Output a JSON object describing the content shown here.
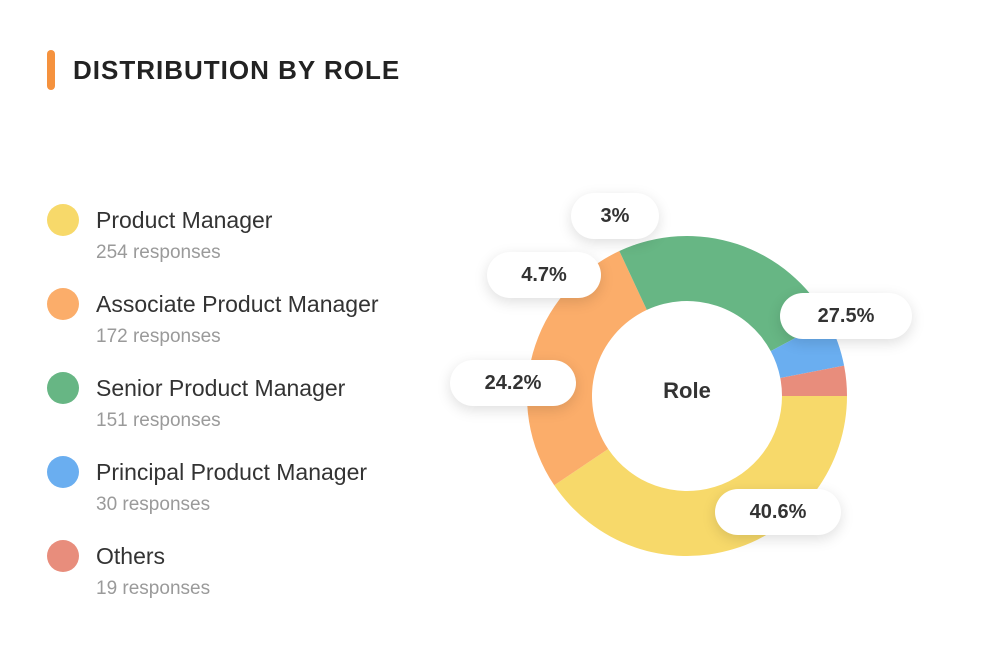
{
  "header": {
    "title": "DISTRIBUTION BY ROLE"
  },
  "legend": [
    {
      "label": "Product Manager",
      "sub": "254 responses",
      "color": "#f7d96a"
    },
    {
      "label": "Associate Product Manager",
      "sub": "172 responses",
      "color": "#fbad6a"
    },
    {
      "label": "Senior Product Manager",
      "sub": "151 responses",
      "color": "#67b684"
    },
    {
      "label": "Principal Product Manager",
      "sub": "30 responses",
      "color": "#6aaef0"
    },
    {
      "label": "Others",
      "sub": "19 responses",
      "color": "#e88d7c"
    }
  ],
  "chart_data": {
    "type": "pie",
    "center_label": "Role",
    "categories": [
      "Product Manager",
      "Associate Product Manager",
      "Senior Product Manager",
      "Principal Product Manager",
      "Others"
    ],
    "values": [
      254,
      172,
      151,
      30,
      19
    ],
    "percent_labels": [
      "40.6%",
      "27.5%",
      "24.2%",
      "4.7%",
      "3%"
    ],
    "colors": [
      "#f7d96a",
      "#fbad6a",
      "#67b684",
      "#6aaef0",
      "#e88d7c"
    ]
  }
}
